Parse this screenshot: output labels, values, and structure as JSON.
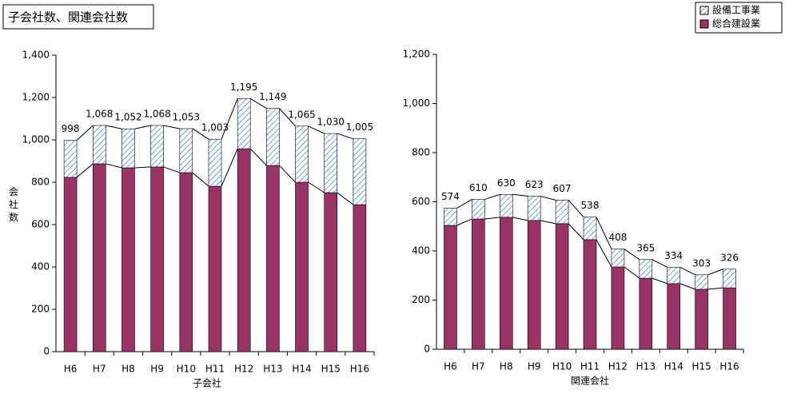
{
  "title": "子会社数、関連会社数",
  "y_label": "会社数",
  "chart_data": [
    {
      "type": "stacked_bar",
      "x_label": "子会社",
      "categories": [
        "H6",
        "H7",
        "H8",
        "H9",
        "H10",
        "H11",
        "H12",
        "H13",
        "H14",
        "H15",
        "H16"
      ],
      "series": [
        {
          "name": "総合建設業",
          "color": "#993366",
          "values": [
            823,
            887,
            868,
            872,
            845,
            781,
            958,
            879,
            800,
            751,
            694
          ]
        },
        {
          "name": "設備工事業",
          "color": "#9dc3e6",
          "values": [
            175,
            181,
            184,
            196,
            208,
            222,
            237,
            270,
            265,
            279,
            311
          ]
        }
      ],
      "totals": [
        998,
        1068,
        1052,
        1068,
        1053,
        1003,
        1195,
        1149,
        1065,
        1030,
        1005
      ],
      "total_labels": [
        "998",
        "1,068",
        "1,052",
        "1,068",
        "1,053",
        "1,003",
        "1,195",
        "1,149",
        "1,065",
        "1,030",
        "1,005"
      ],
      "ylim": [
        0,
        1400
      ],
      "yticks": [
        0,
        200,
        400,
        600,
        800,
        {
          "value": 1000,
          "label": "1,000"
        },
        {
          "value": 1200,
          "label": "1,200"
        },
        {
          "value": 1400,
          "label": "1,400"
        }
      ]
    },
    {
      "type": "stacked_bar",
      "x_label": "関連会社",
      "categories": [
        "H6",
        "H7",
        "H8",
        "H9",
        "H10",
        "H11",
        "H12",
        "H13",
        "H14",
        "H15",
        "H16"
      ],
      "series": [
        {
          "color": "#993366",
          "values": [
            504,
            530,
            537,
            524,
            511,
            446,
            335,
            289,
            267,
            244,
            250
          ]
        },
        {
          "color": "#9dc3e6",
          "values": [
            70,
            80,
            93,
            99,
            96,
            92,
            73,
            76,
            67,
            59,
            76
          ]
        }
      ],
      "totals": [
        574,
        610,
        630,
        623,
        607,
        538,
        408,
        365,
        334,
        303,
        326
      ],
      "ylim": [
        0,
        1200
      ],
      "yticks": [
        0,
        200,
        400,
        600,
        800,
        {
          "value": 1000,
          "label": "1,000"
        },
        {
          "value": 1200,
          "label": "1,200"
        }
      ]
    }
  ]
}
